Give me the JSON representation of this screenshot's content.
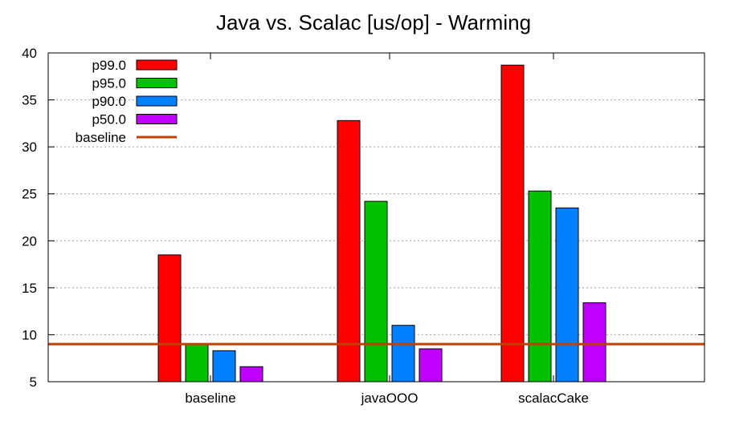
{
  "chart_data": {
    "type": "bar",
    "title": "Java vs. Scalac [us/op] - Warming",
    "xlabel": "",
    "ylabel": "",
    "ylim": [
      5,
      40
    ],
    "yticks": [
      5,
      10,
      15,
      20,
      25,
      30,
      35,
      40
    ],
    "grid": "horizontal dotted",
    "legend_position": "top-left",
    "categories": [
      "baseline",
      "javaOOO",
      "scalacCake"
    ],
    "series": [
      {
        "name": "p99.0",
        "color": "#ff0000",
        "values": [
          18.5,
          32.8,
          38.7
        ]
      },
      {
        "name": "p95.0",
        "color": "#00c000",
        "values": [
          9.0,
          24.2,
          25.3
        ]
      },
      {
        "name": "p90.0",
        "color": "#0080ff",
        "values": [
          8.3,
          11.0,
          23.5
        ]
      },
      {
        "name": "p50.0",
        "color": "#c000ff",
        "values": [
          6.6,
          8.5,
          13.4
        ]
      }
    ],
    "reference_lines": [
      {
        "name": "baseline",
        "value": 9.0,
        "color": "#c04000"
      }
    ]
  }
}
